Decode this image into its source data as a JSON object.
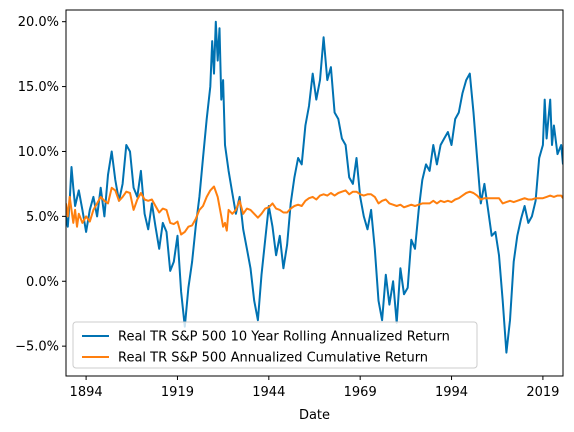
{
  "chart_data": {
    "type": "line",
    "title": "",
    "xlabel": "Date",
    "ylabel": "",
    "xlim": [
      1888.5,
      2024.5
    ],
    "ylim": [
      -7.3,
      20.9
    ],
    "x_ticks": [
      1894,
      1919,
      1944,
      1969,
      1994,
      2019
    ],
    "x_tick_labels": [
      "1894",
      "1919",
      "1944",
      "1969",
      "1994",
      "2019"
    ],
    "y_ticks": [
      -5,
      0,
      5,
      10,
      15,
      20
    ],
    "y_tick_labels": [
      "−5.0%",
      "0.0%",
      "5.0%",
      "10.0%",
      "15.0%",
      "20.0%"
    ],
    "grid": false,
    "legend_position": "lower-left",
    "series": [
      {
        "name": "Real TR S&P 500 10 Year Rolling Annualized Return",
        "color": "#0072b2",
        "points": [
          [
            1888.5,
            5.0
          ],
          [
            1889.0,
            4.2
          ],
          [
            1889.5,
            6.2
          ],
          [
            1890.0,
            8.8
          ],
          [
            1890.5,
            7.2
          ],
          [
            1891.0,
            5.8
          ],
          [
            1892.0,
            7.0
          ],
          [
            1893.0,
            5.5
          ],
          [
            1894.0,
            3.8
          ],
          [
            1895.0,
            5.5
          ],
          [
            1896.0,
            6.5
          ],
          [
            1897.0,
            5.0
          ],
          [
            1898.0,
            7.2
          ],
          [
            1899.0,
            5.0
          ],
          [
            1900.0,
            8.2
          ],
          [
            1901.0,
            10.0
          ],
          [
            1902.0,
            7.8
          ],
          [
            1903.0,
            6.2
          ],
          [
            1904.0,
            7.5
          ],
          [
            1905.0,
            10.5
          ],
          [
            1906.0,
            10.0
          ],
          [
            1907.0,
            7.2
          ],
          [
            1908.0,
            6.5
          ],
          [
            1909.0,
            8.5
          ],
          [
            1910.0,
            5.2
          ],
          [
            1911.0,
            4.0
          ],
          [
            1912.0,
            6.0
          ],
          [
            1913.0,
            4.2
          ],
          [
            1914.0,
            2.5
          ],
          [
            1915.0,
            4.5
          ],
          [
            1916.0,
            3.8
          ],
          [
            1917.0,
            0.8
          ],
          [
            1918.0,
            1.5
          ],
          [
            1919.0,
            3.5
          ],
          [
            1920.0,
            -0.8
          ],
          [
            1921.0,
            -3.5
          ],
          [
            1922.0,
            -0.5
          ],
          [
            1923.0,
            1.5
          ],
          [
            1924.0,
            4.2
          ],
          [
            1925.0,
            6.5
          ],
          [
            1926.0,
            9.5
          ],
          [
            1927.0,
            12.5
          ],
          [
            1928.0,
            15.0
          ],
          [
            1928.5,
            18.5
          ],
          [
            1929.0,
            16.0
          ],
          [
            1929.5,
            20.0
          ],
          [
            1930.0,
            17.0
          ],
          [
            1930.5,
            19.5
          ],
          [
            1931.0,
            14.0
          ],
          [
            1931.5,
            15.5
          ],
          [
            1932.0,
            10.5
          ],
          [
            1933.0,
            8.5
          ],
          [
            1934.0,
            6.8
          ],
          [
            1935.0,
            5.2
          ],
          [
            1936.0,
            6.5
          ],
          [
            1937.0,
            4.0
          ],
          [
            1938.0,
            2.5
          ],
          [
            1939.0,
            1.0
          ],
          [
            1940.0,
            -1.5
          ],
          [
            1941.0,
            -3.0
          ],
          [
            1942.0,
            0.5
          ],
          [
            1943.0,
            3.2
          ],
          [
            1944.0,
            5.8
          ],
          [
            1945.0,
            4.2
          ],
          [
            1946.0,
            2.0
          ],
          [
            1947.0,
            3.5
          ],
          [
            1948.0,
            1.0
          ],
          [
            1949.0,
            2.8
          ],
          [
            1950.0,
            6.0
          ],
          [
            1951.0,
            8.0
          ],
          [
            1952.0,
            9.5
          ],
          [
            1953.0,
            9.0
          ],
          [
            1954.0,
            12.0
          ],
          [
            1955.0,
            13.5
          ],
          [
            1956.0,
            16.0
          ],
          [
            1957.0,
            14.0
          ],
          [
            1958.0,
            15.5
          ],
          [
            1959.0,
            18.8
          ],
          [
            1960.0,
            15.5
          ],
          [
            1961.0,
            16.5
          ],
          [
            1962.0,
            13.0
          ],
          [
            1963.0,
            12.5
          ],
          [
            1964.0,
            11.0
          ],
          [
            1965.0,
            10.5
          ],
          [
            1966.0,
            8.0
          ],
          [
            1967.0,
            7.5
          ],
          [
            1968.0,
            9.5
          ],
          [
            1969.0,
            6.5
          ],
          [
            1970.0,
            5.0
          ],
          [
            1971.0,
            4.0
          ],
          [
            1972.0,
            5.5
          ],
          [
            1973.0,
            2.5
          ],
          [
            1974.0,
            -1.5
          ],
          [
            1975.0,
            -3.0
          ],
          [
            1976.0,
            0.5
          ],
          [
            1977.0,
            -1.8
          ],
          [
            1978.0,
            0.0
          ],
          [
            1979.0,
            -3.2
          ],
          [
            1980.0,
            1.0
          ],
          [
            1981.0,
            -1.0
          ],
          [
            1982.0,
            -0.5
          ],
          [
            1983.0,
            3.2
          ],
          [
            1984.0,
            2.5
          ],
          [
            1985.0,
            5.5
          ],
          [
            1986.0,
            7.8
          ],
          [
            1987.0,
            9.0
          ],
          [
            1988.0,
            8.5
          ],
          [
            1989.0,
            10.5
          ],
          [
            1990.0,
            9.0
          ],
          [
            1991.0,
            10.5
          ],
          [
            1992.0,
            11.0
          ],
          [
            1993.0,
            11.5
          ],
          [
            1994.0,
            10.5
          ],
          [
            1995.0,
            12.5
          ],
          [
            1996.0,
            13.0
          ],
          [
            1997.0,
            14.5
          ],
          [
            1998.0,
            15.5
          ],
          [
            1999.0,
            16.0
          ],
          [
            2000.0,
            13.0
          ],
          [
            2001.0,
            9.5
          ],
          [
            2002.0,
            6.0
          ],
          [
            2003.0,
            7.5
          ],
          [
            2004.0,
            5.5
          ],
          [
            2005.0,
            3.5
          ],
          [
            2006.0,
            3.8
          ],
          [
            2007.0,
            2.0
          ],
          [
            2008.0,
            -1.5
          ],
          [
            2009.0,
            -5.5
          ],
          [
            2010.0,
            -3.0
          ],
          [
            2011.0,
            1.5
          ],
          [
            2012.0,
            3.5
          ],
          [
            2013.0,
            4.8
          ],
          [
            2014.0,
            5.8
          ],
          [
            2015.0,
            4.5
          ],
          [
            2016.0,
            5.0
          ],
          [
            2017.0,
            6.2
          ],
          [
            2018.0,
            9.5
          ],
          [
            2019.0,
            10.5
          ],
          [
            2019.5,
            14.0
          ],
          [
            2020.0,
            11.0
          ],
          [
            2020.5,
            12.5
          ],
          [
            2021.0,
            14.0
          ],
          [
            2021.5,
            10.5
          ],
          [
            2022.0,
            12.0
          ],
          [
            2023.0,
            9.8
          ],
          [
            2024.0,
            10.5
          ],
          [
            2024.5,
            9.0
          ]
        ]
      },
      {
        "name": "Real TR S&P 500 Annualized Cumulative Return",
        "color": "#ff7f0e",
        "points": [
          [
            1888.5,
            6.0
          ],
          [
            1889.0,
            5.0
          ],
          [
            1889.5,
            6.5
          ],
          [
            1890.0,
            5.5
          ],
          [
            1890.5,
            4.5
          ],
          [
            1891.0,
            5.5
          ],
          [
            1891.5,
            4.2
          ],
          [
            1892.0,
            5.2
          ],
          [
            1893.0,
            4.5
          ],
          [
            1894.0,
            5.0
          ],
          [
            1895.0,
            4.6
          ],
          [
            1896.0,
            5.5
          ],
          [
            1897.0,
            6.0
          ],
          [
            1898.0,
            6.5
          ],
          [
            1899.0,
            6.2
          ],
          [
            1900.0,
            6.0
          ],
          [
            1901.0,
            7.2
          ],
          [
            1902.0,
            7.0
          ],
          [
            1903.0,
            6.2
          ],
          [
            1904.0,
            6.5
          ],
          [
            1905.0,
            6.9
          ],
          [
            1906.0,
            6.8
          ],
          [
            1907.0,
            5.5
          ],
          [
            1908.0,
            6.3
          ],
          [
            1909.0,
            6.8
          ],
          [
            1910.0,
            6.3
          ],
          [
            1911.0,
            6.2
          ],
          [
            1912.0,
            6.3
          ],
          [
            1913.0,
            5.8
          ],
          [
            1914.0,
            5.3
          ],
          [
            1915.0,
            5.6
          ],
          [
            1916.0,
            5.5
          ],
          [
            1917.0,
            4.5
          ],
          [
            1918.0,
            4.4
          ],
          [
            1919.0,
            4.6
          ],
          [
            1920.0,
            3.6
          ],
          [
            1921.0,
            3.8
          ],
          [
            1922.0,
            4.2
          ],
          [
            1923.0,
            4.3
          ],
          [
            1924.0,
            4.8
          ],
          [
            1925.0,
            5.5
          ],
          [
            1926.0,
            5.8
          ],
          [
            1927.0,
            6.5
          ],
          [
            1928.0,
            7.0
          ],
          [
            1929.0,
            7.3
          ],
          [
            1930.0,
            6.5
          ],
          [
            1931.0,
            5.0
          ],
          [
            1931.5,
            4.2
          ],
          [
            1932.0,
            4.5
          ],
          [
            1932.5,
            3.9
          ],
          [
            1933.0,
            5.5
          ],
          [
            1934.0,
            5.2
          ],
          [
            1935.0,
            5.5
          ],
          [
            1936.0,
            6.2
          ],
          [
            1937.0,
            5.2
          ],
          [
            1938.0,
            5.6
          ],
          [
            1939.0,
            5.5
          ],
          [
            1940.0,
            5.2
          ],
          [
            1941.0,
            4.9
          ],
          [
            1942.0,
            5.2
          ],
          [
            1943.0,
            5.6
          ],
          [
            1944.0,
            5.7
          ],
          [
            1945.0,
            6.0
          ],
          [
            1946.0,
            5.6
          ],
          [
            1947.0,
            5.5
          ],
          [
            1948.0,
            5.3
          ],
          [
            1949.0,
            5.3
          ],
          [
            1950.0,
            5.6
          ],
          [
            1951.0,
            5.8
          ],
          [
            1952.0,
            5.9
          ],
          [
            1953.0,
            5.8
          ],
          [
            1954.0,
            6.2
          ],
          [
            1955.0,
            6.4
          ],
          [
            1956.0,
            6.5
          ],
          [
            1957.0,
            6.3
          ],
          [
            1958.0,
            6.6
          ],
          [
            1959.0,
            6.7
          ],
          [
            1960.0,
            6.6
          ],
          [
            1961.0,
            6.8
          ],
          [
            1962.0,
            6.6
          ],
          [
            1963.0,
            6.8
          ],
          [
            1964.0,
            6.9
          ],
          [
            1965.0,
            7.0
          ],
          [
            1966.0,
            6.7
          ],
          [
            1967.0,
            6.9
          ],
          [
            1968.0,
            6.9
          ],
          [
            1969.0,
            6.7
          ],
          [
            1970.0,
            6.6
          ],
          [
            1971.0,
            6.7
          ],
          [
            1972.0,
            6.7
          ],
          [
            1973.0,
            6.5
          ],
          [
            1974.0,
            6.0
          ],
          [
            1975.0,
            6.2
          ],
          [
            1976.0,
            6.3
          ],
          [
            1977.0,
            6.0
          ],
          [
            1978.0,
            5.9
          ],
          [
            1979.0,
            5.8
          ],
          [
            1980.0,
            5.9
          ],
          [
            1981.0,
            5.7
          ],
          [
            1982.0,
            5.8
          ],
          [
            1983.0,
            5.9
          ],
          [
            1984.0,
            5.8
          ],
          [
            1985.0,
            5.9
          ],
          [
            1986.0,
            6.0
          ],
          [
            1987.0,
            6.0
          ],
          [
            1988.0,
            6.0
          ],
          [
            1989.0,
            6.2
          ],
          [
            1990.0,
            6.0
          ],
          [
            1991.0,
            6.2
          ],
          [
            1992.0,
            6.1
          ],
          [
            1993.0,
            6.2
          ],
          [
            1994.0,
            6.1
          ],
          [
            1995.0,
            6.3
          ],
          [
            1996.0,
            6.4
          ],
          [
            1997.0,
            6.6
          ],
          [
            1998.0,
            6.8
          ],
          [
            1999.0,
            6.9
          ],
          [
            2000.0,
            6.8
          ],
          [
            2001.0,
            6.6
          ],
          [
            2002.0,
            6.3
          ],
          [
            2003.0,
            6.4
          ],
          [
            2004.0,
            6.4
          ],
          [
            2005.0,
            6.4
          ],
          [
            2006.0,
            6.4
          ],
          [
            2007.0,
            6.4
          ],
          [
            2008.0,
            6.0
          ],
          [
            2009.0,
            6.1
          ],
          [
            2010.0,
            6.2
          ],
          [
            2011.0,
            6.1
          ],
          [
            2012.0,
            6.2
          ],
          [
            2013.0,
            6.3
          ],
          [
            2014.0,
            6.4
          ],
          [
            2015.0,
            6.3
          ],
          [
            2016.0,
            6.3
          ],
          [
            2017.0,
            6.4
          ],
          [
            2018.0,
            6.4
          ],
          [
            2019.0,
            6.4
          ],
          [
            2020.0,
            6.5
          ],
          [
            2021.0,
            6.6
          ],
          [
            2022.0,
            6.5
          ],
          [
            2023.0,
            6.6
          ],
          [
            2024.0,
            6.6
          ],
          [
            2024.5,
            6.4
          ]
        ]
      }
    ]
  }
}
